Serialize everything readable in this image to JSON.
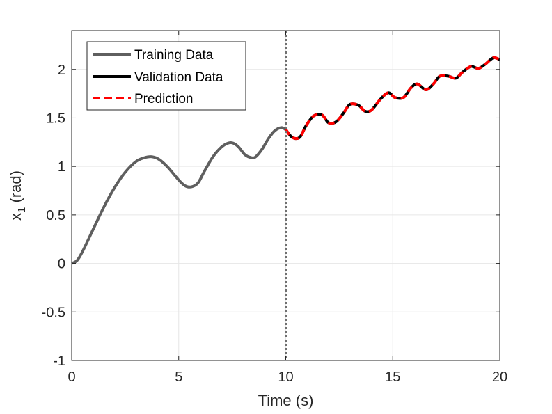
{
  "chart_data": {
    "type": "line",
    "title": "",
    "xlabel": "Time (s)",
    "ylabel_main": "x",
    "ylabel_sub": "1",
    "ylabel_unit": " (rad)",
    "xlim": [
      0,
      20
    ],
    "ylim": [
      -1,
      2.4
    ],
    "xticks": [
      0,
      5,
      10,
      15,
      20
    ],
    "xtick_labels": [
      "0",
      "5",
      "10",
      "15",
      "20"
    ],
    "yticks": [
      -1,
      -0.5,
      0,
      0.5,
      1,
      1.5,
      2
    ],
    "ytick_labels": [
      "-1",
      "-0.5",
      "0",
      "0.5",
      "1",
      "1.5",
      "2"
    ],
    "grid": true,
    "legend_position": "top-left",
    "split_line_x": 10,
    "series": [
      {
        "name": "Training Data",
        "color": "#5f5f5f",
        "style": "solid",
        "x": [
          0,
          0.25,
          0.5,
          1,
          1.5,
          2,
          2.5,
          3,
          3.4,
          3.75,
          4.1,
          4.5,
          5,
          5.3,
          5.6,
          5.9,
          6.2,
          6.6,
          7,
          7.3,
          7.55,
          7.8,
          8.1,
          8.4,
          8.6,
          8.9,
          9.2,
          9.5,
          9.8,
          10
        ],
        "y": [
          0,
          0.03,
          0.12,
          0.35,
          0.58,
          0.78,
          0.94,
          1.05,
          1.09,
          1.1,
          1.07,
          0.99,
          0.86,
          0.8,
          0.79,
          0.83,
          0.95,
          1.1,
          1.2,
          1.24,
          1.24,
          1.2,
          1.12,
          1.09,
          1.1,
          1.18,
          1.29,
          1.37,
          1.4,
          1.38
        ]
      },
      {
        "name": "Validation Data",
        "color": "#000000",
        "style": "solid",
        "x": [
          10,
          10.3,
          10.65,
          10.95,
          11.3,
          11.7,
          12,
          12.35,
          12.7,
          13,
          13.4,
          13.7,
          14,
          14.45,
          14.8,
          15.1,
          15.5,
          15.85,
          16.15,
          16.55,
          16.9,
          17.2,
          17.6,
          17.95,
          18.25,
          18.65,
          19,
          19.3,
          19.7,
          20
        ],
        "y": [
          1.38,
          1.3,
          1.3,
          1.42,
          1.52,
          1.53,
          1.45,
          1.46,
          1.55,
          1.64,
          1.63,
          1.57,
          1.58,
          1.7,
          1.76,
          1.71,
          1.71,
          1.81,
          1.85,
          1.79,
          1.85,
          1.93,
          1.93,
          1.91,
          1.97,
          2.03,
          2.01,
          2.05,
          2.12,
          2.1
        ]
      },
      {
        "name": "Prediction",
        "color": "#ff0000",
        "style": "dashed",
        "x": [
          10,
          10.3,
          10.65,
          10.95,
          11.3,
          11.7,
          12,
          12.35,
          12.7,
          13,
          13.4,
          13.7,
          14,
          14.45,
          14.8,
          15.1,
          15.5,
          15.85,
          16.15,
          16.55,
          16.9,
          17.2,
          17.6,
          17.95,
          18.25,
          18.65,
          19,
          19.3,
          19.7,
          20
        ],
        "y": [
          1.38,
          1.3,
          1.3,
          1.42,
          1.52,
          1.53,
          1.45,
          1.46,
          1.55,
          1.64,
          1.63,
          1.57,
          1.58,
          1.7,
          1.76,
          1.71,
          1.71,
          1.81,
          1.85,
          1.79,
          1.85,
          1.93,
          1.93,
          1.91,
          1.97,
          2.03,
          2.01,
          2.05,
          2.12,
          2.1
        ]
      }
    ]
  }
}
